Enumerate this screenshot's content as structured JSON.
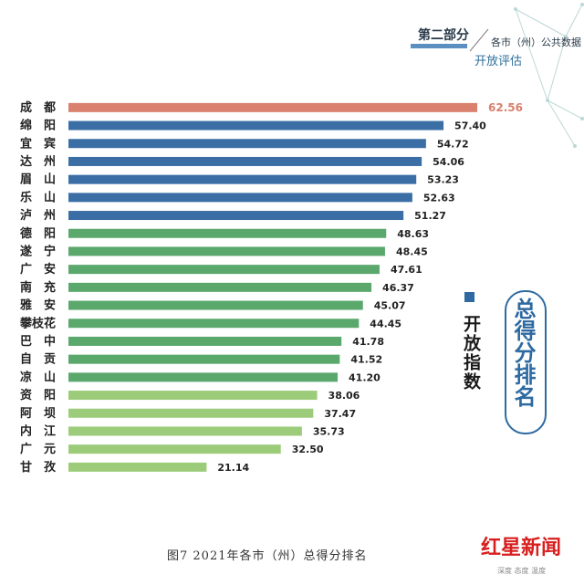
{
  "header": {
    "title": "第二部分",
    "subtitle_line1": "各市（州）公共数据",
    "subtitle_line2": "开放评估"
  },
  "legend": {
    "label": "开放指数"
  },
  "badge": {
    "text": "总得分排名"
  },
  "caption": "图7    2021年各市（州）总得分排名",
  "watermark": {
    "brand": "红星新闻",
    "tagline": "深度 态度 温度"
  },
  "colors": {
    "top": "#d9806e",
    "tier_blue": "#3a6ea5",
    "tier_mid_green": "#5ba86d",
    "tier_light_green": "#9ccc7a",
    "top_label": "#d9806e"
  },
  "chart_data": {
    "type": "bar",
    "orientation": "horizontal",
    "categories": [
      "成　都",
      "绵　阳",
      "宜　宾",
      "达　州",
      "眉　山",
      "乐　山",
      "泸　州",
      "德　阳",
      "遂　宁",
      "广　安",
      "南　充",
      "雅　安",
      "攀枝花",
      "巴　中",
      "自　贡",
      "凉　山",
      "资　阳",
      "阿　坝",
      "内　江",
      "广　元",
      "甘　孜"
    ],
    "values": [
      62.56,
      57.4,
      54.72,
      54.06,
      53.23,
      52.63,
      51.27,
      48.63,
      48.45,
      47.61,
      46.37,
      45.07,
      44.45,
      41.78,
      41.52,
      41.2,
      38.06,
      37.47,
      35.73,
      32.5,
      21.14
    ],
    "value_labels": [
      "62.56",
      "57.40",
      "54.72",
      "54.06",
      "53.23",
      "52.63",
      "51.27",
      "48.63",
      "48.45",
      "47.61",
      "46.37",
      "45.07",
      "44.45",
      "41.78",
      "41.52",
      "41.20",
      "38.06",
      "37.47",
      "35.73",
      "32.50",
      "21.14"
    ],
    "tiers": [
      "top",
      "tier_blue",
      "tier_blue",
      "tier_blue",
      "tier_blue",
      "tier_blue",
      "tier_blue",
      "tier_mid_green",
      "tier_mid_green",
      "tier_mid_green",
      "tier_mid_green",
      "tier_mid_green",
      "tier_mid_green",
      "tier_mid_green",
      "tier_mid_green",
      "tier_mid_green",
      "tier_light_green",
      "tier_light_green",
      "tier_light_green",
      "tier_light_green",
      "tier_light_green"
    ]
  }
}
